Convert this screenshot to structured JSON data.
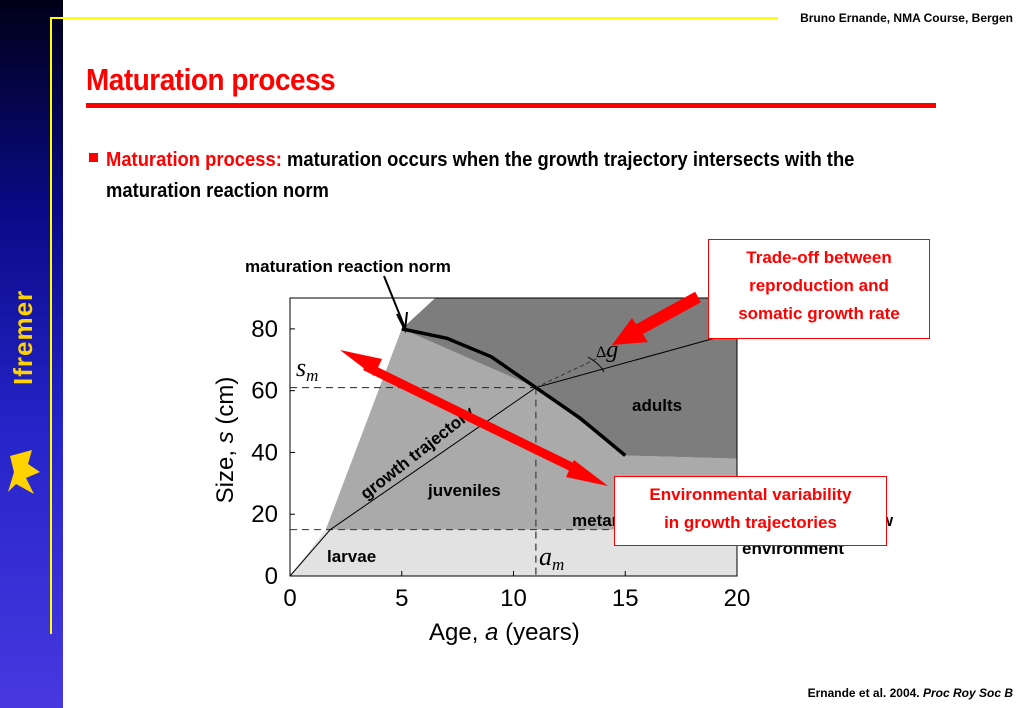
{
  "header": {
    "author": "Bruno Ernande, NMA Course, Bergen"
  },
  "logo": {
    "text": "Ifremer"
  },
  "slide": {
    "title": "Maturation process",
    "bullet": {
      "lead": "Maturation process:",
      "text": " maturation occurs when the growth trajectory intersects with the maturation reaction norm"
    }
  },
  "callouts": {
    "tradeoff": [
      "Trade-off between",
      "reproduction and",
      "somatic growth rate"
    ],
    "envvar": [
      "Environmental variability",
      "in growth trajectories"
    ]
  },
  "citation": {
    "text": "Ernande et al. 2004. ",
    "journal": "Proc Roy Soc B"
  },
  "chart_data": {
    "type": "line",
    "xlabel": "Age, a (years)",
    "ylabel": "Size, s (cm)",
    "xlim": [
      0,
      20
    ],
    "ylim": [
      0,
      90
    ],
    "xticks": [
      0,
      5,
      10,
      15,
      20
    ],
    "yticks": [
      0,
      20,
      40,
      60,
      80
    ],
    "regions": [
      {
        "name": "larvae",
        "color": "#e2e2e2",
        "points": [
          [
            0,
            0
          ],
          [
            1.6,
            15
          ],
          [
            20,
            15
          ],
          [
            20,
            0
          ]
        ]
      },
      {
        "name": "juveniles",
        "color": "#aaaaaa",
        "points": [
          [
            1.6,
            15
          ],
          [
            5,
            80
          ],
          [
            11,
            61
          ],
          [
            15,
            39
          ],
          [
            20,
            38
          ],
          [
            20,
            15
          ]
        ]
      },
      {
        "name": "adults",
        "color": "#7d7d7d",
        "points": [
          [
            5,
            80
          ],
          [
            6.5,
            90
          ],
          [
            20,
            90
          ],
          [
            20,
            38
          ],
          [
            15,
            39
          ],
          [
            11,
            61
          ]
        ]
      }
    ],
    "series": [
      {
        "name": "maturation reaction norm",
        "x": [
          5,
          7,
          9,
          11,
          13,
          15
        ],
        "y": [
          80,
          77,
          71,
          61,
          51,
          39
        ]
      },
      {
        "name": "growth trajectory",
        "x": [
          0,
          1.8,
          11,
          20
        ],
        "y": [
          0,
          15,
          61,
          79
        ]
      },
      {
        "name": "alternative trajectory",
        "x": [
          11,
          14.2
        ],
        "y": [
          61,
          72
        ]
      }
    ],
    "reference": {
      "a_m": 11,
      "s_m": 61,
      "larvae_size": 15
    },
    "labels": {
      "larvae": "larvae",
      "juveniles": "juveniles",
      "adults": "adults",
      "growth_trajectory": "growth trajectory",
      "metamorphosis": "metamorphosis",
      "reaction_norm": "maturation reaction norm",
      "s_m": "s",
      "s_m_sub": "m",
      "a_m": "a",
      "a_m_sub": "m",
      "delta_g": "Δ",
      "delta_g_var": "g",
      "new_env_1": "new",
      "new_env_2": "environment",
      "y_axis_pre": "Size, ",
      "y_axis_var": "s",
      "y_axis_post": " (cm)",
      "x_axis_pre": "Age, ",
      "x_axis_var": "a",
      "x_axis_post": " (years)"
    }
  }
}
